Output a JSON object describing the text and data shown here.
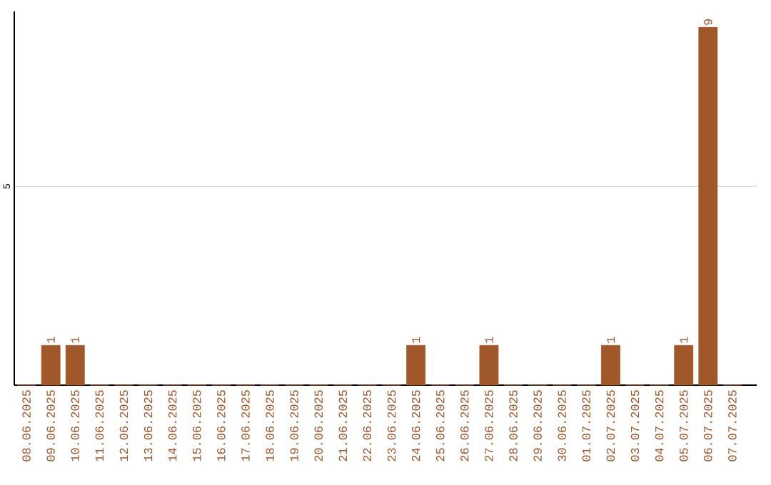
{
  "chart_data": {
    "type": "bar",
    "categories": [
      "08.06.2025",
      "09.06.2025",
      "10.06.2025",
      "11.06.2025",
      "12.06.2025",
      "13.06.2025",
      "14.06.2025",
      "15.06.2025",
      "16.06.2025",
      "17.06.2025",
      "18.06.2025",
      "19.06.2025",
      "20.06.2025",
      "21.06.2025",
      "22.06.2025",
      "23.06.2025",
      "24.06.2025",
      "25.06.2025",
      "26.06.2025",
      "27.06.2025",
      "28.06.2025",
      "29.06.2025",
      "30.06.2025",
      "01.07.2025",
      "02.07.2025",
      "03.07.2025",
      "04.07.2025",
      "05.07.2025",
      "06.07.2025",
      "07.07.2025"
    ],
    "values": [
      0,
      1,
      1,
      0,
      0,
      0,
      0,
      0,
      0,
      0,
      0,
      0,
      0,
      0,
      0,
      0,
      1,
      0,
      0,
      1,
      0,
      0,
      0,
      0,
      1,
      0,
      0,
      1,
      9,
      0
    ],
    "value_labels": [
      null,
      "1",
      "1",
      null,
      null,
      null,
      null,
      null,
      null,
      null,
      null,
      null,
      null,
      null,
      null,
      null,
      "1",
      null,
      null,
      "1",
      null,
      null,
      null,
      null,
      "1",
      null,
      null,
      "1",
      "9",
      null
    ],
    "color": "#a0572a",
    "ylim": [
      0,
      9.4
    ],
    "yticks": [
      5
    ],
    "grid": "y"
  }
}
